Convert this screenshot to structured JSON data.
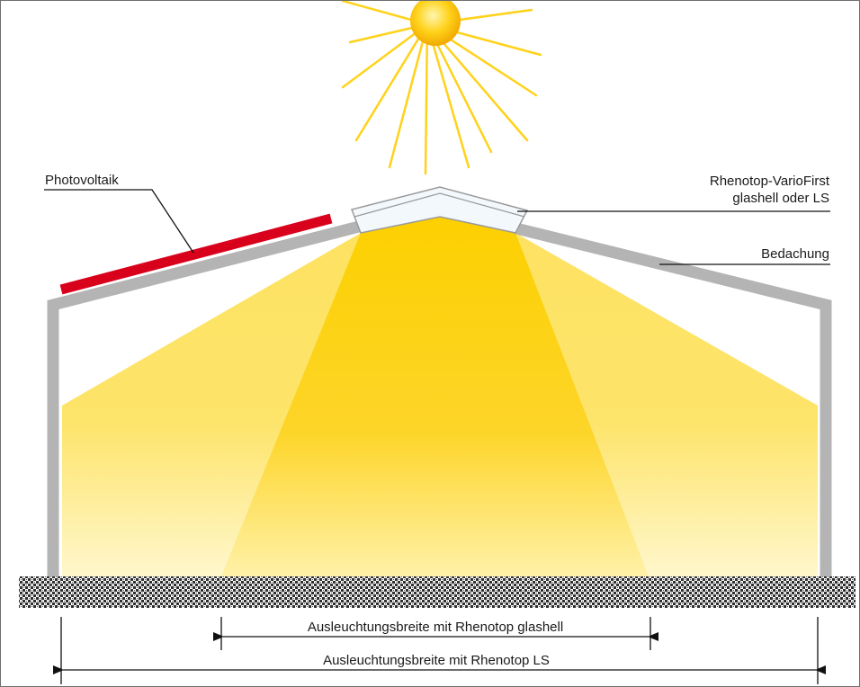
{
  "labels": {
    "photovoltaik": "Photovoltaik",
    "skylight_line1": "Rhenotop-VarioFirst",
    "skylight_line2": "glashell oder LS",
    "roofing": "Bedachung"
  },
  "dimensions": {
    "glashell": "Ausleuchtungsbreite mit Rhenotop glashell",
    "ls": "Ausleuchtungsbreite mit Rhenotop LS"
  },
  "colors": {
    "sun": "#ffd21a",
    "light_core": "#fcd200",
    "light_side": "#fde262",
    "structure": "#b4b4b4",
    "photovoltaic_panel": "#d9001b",
    "ground": "#3a3a3a"
  },
  "icons": {
    "sun": "sun-icon",
    "arrow": "double-arrow-icon"
  }
}
